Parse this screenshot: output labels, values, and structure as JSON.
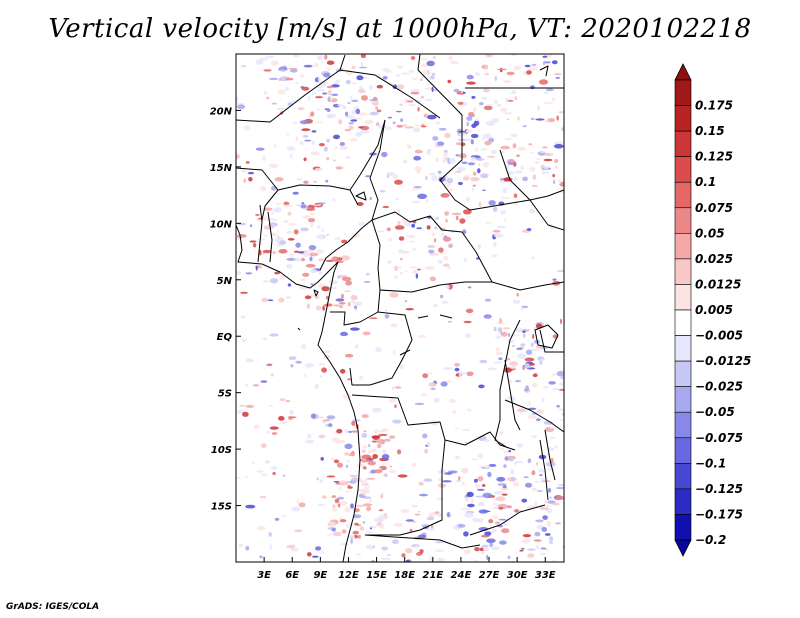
{
  "title": "Vertical velocity [m/s] at 1000hPa, VT: 2020102218",
  "credit": "GrADS: IGES/COLA",
  "map": {
    "lon_range": [
      0,
      35
    ],
    "lat_range": [
      -20,
      25
    ],
    "lat_ticks": [
      {
        "value": 20,
        "label": "20N"
      },
      {
        "value": 15,
        "label": "15N"
      },
      {
        "value": 10,
        "label": "10N"
      },
      {
        "value": 5,
        "label": "5N"
      },
      {
        "value": 0,
        "label": "EQ"
      },
      {
        "value": -5,
        "label": "5S"
      },
      {
        "value": -10,
        "label": "10S"
      },
      {
        "value": -15,
        "label": "15S"
      }
    ],
    "lon_ticks": [
      {
        "value": 3,
        "label": "3E"
      },
      {
        "value": 6,
        "label": "6E"
      },
      {
        "value": 9,
        "label": "9E"
      },
      {
        "value": 12,
        "label": "12E"
      },
      {
        "value": 15,
        "label": "15E"
      },
      {
        "value": 18,
        "label": "18E"
      },
      {
        "value": 21,
        "label": "21E"
      },
      {
        "value": 24,
        "label": "24E"
      },
      {
        "value": 27,
        "label": "27E"
      },
      {
        "value": 30,
        "label": "30E"
      },
      {
        "value": 33,
        "label": "33E"
      }
    ]
  },
  "colorbar": {
    "levels": [
      {
        "label": "0.175",
        "color": "#a01818"
      },
      {
        "label": "0.15",
        "color": "#b82424"
      },
      {
        "label": "0.125",
        "color": "#cc3636"
      },
      {
        "label": "0.1",
        "color": "#dc4c4c"
      },
      {
        "label": "0.075",
        "color": "#e46868"
      },
      {
        "label": "0.05",
        "color": "#ec8888"
      },
      {
        "label": "0.025",
        "color": "#f4a8a8"
      },
      {
        "label": "0.0125",
        "color": "#f8c8c8"
      },
      {
        "label": "0.005",
        "color": "#fce4e4"
      },
      {
        "label": "−0.005",
        "color": "#ffffff"
      },
      {
        "label": "−0.0125",
        "color": "#e6e6fc"
      },
      {
        "label": "−0.025",
        "color": "#c8c8f6"
      },
      {
        "label": "−0.05",
        "color": "#a8a8f0"
      },
      {
        "label": "−0.075",
        "color": "#8888ea"
      },
      {
        "label": "−0.1",
        "color": "#6868e0"
      },
      {
        "label": "−0.125",
        "color": "#4848d4"
      },
      {
        "label": "−0.175",
        "color": "#2c2cc4"
      },
      {
        "label": "−0.2",
        "color": "#1010b0"
      }
    ],
    "top_arrow_color": "#8c1010",
    "bottom_arrow_color": "#0808a0"
  }
}
